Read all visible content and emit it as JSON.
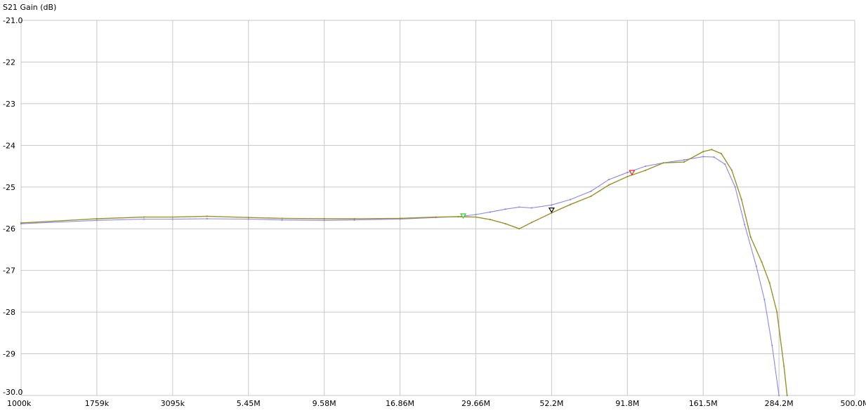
{
  "chart_data": {
    "type": "line",
    "ylabel": "S21 Gain (dB)",
    "x_scale": "log",
    "xlim": [
      1000000,
      500000000
    ],
    "ylim": [
      -30.0,
      -21.0
    ],
    "x_ticks": [
      {
        "value": 1000000,
        "label": "1000k"
      },
      {
        "value": 1759000,
        "label": "1759k"
      },
      {
        "value": 3095000,
        "label": "3095k"
      },
      {
        "value": 5450000,
        "label": "5.45M"
      },
      {
        "value": 9580000,
        "label": "9.58M"
      },
      {
        "value": 16860000,
        "label": "16.86M"
      },
      {
        "value": 29660000,
        "label": "29.66M"
      },
      {
        "value": 52200000,
        "label": "52.2M"
      },
      {
        "value": 91800000,
        "label": "91.8M"
      },
      {
        "value": 161500000,
        "label": "161.5M"
      },
      {
        "value": 284200000,
        "label": "284.2M"
      },
      {
        "value": 500000000,
        "label": "500.0M"
      }
    ],
    "y_ticks": [
      {
        "value": -21.0,
        "label": "-21.0"
      },
      {
        "value": -22,
        "label": "-22"
      },
      {
        "value": -23,
        "label": "-23"
      },
      {
        "value": -24,
        "label": "-24"
      },
      {
        "value": -25,
        "label": "-25"
      },
      {
        "value": -26,
        "label": "-26"
      },
      {
        "value": -27,
        "label": "-27"
      },
      {
        "value": -28,
        "label": "-28"
      },
      {
        "value": -29,
        "label": "-29"
      },
      {
        "value": -30.0,
        "label": "-30.0"
      }
    ],
    "grid": true,
    "series": [
      {
        "color": "#8888ee",
        "points": [
          [
            1000000,
            -25.88
          ],
          [
            1759000,
            -25.8
          ],
          [
            2500000,
            -25.77
          ],
          [
            3095000,
            -25.77
          ],
          [
            4000000,
            -25.76
          ],
          [
            5450000,
            -25.77
          ],
          [
            7000000,
            -25.79
          ],
          [
            9580000,
            -25.8
          ],
          [
            12000000,
            -25.79
          ],
          [
            16860000,
            -25.77
          ],
          [
            22000000,
            -25.73
          ],
          [
            26000000,
            -25.71
          ],
          [
            29660000,
            -25.66
          ],
          [
            33000000,
            -25.6
          ],
          [
            37000000,
            -25.53
          ],
          [
            41000000,
            -25.48
          ],
          [
            45000000,
            -25.5
          ],
          [
            52200000,
            -25.43
          ],
          [
            60000000,
            -25.3
          ],
          [
            70000000,
            -25.1
          ],
          [
            80000000,
            -24.82
          ],
          [
            91800000,
            -24.65
          ],
          [
            105000000,
            -24.5
          ],
          [
            120000000,
            -24.42
          ],
          [
            140000000,
            -24.35
          ],
          [
            161500000,
            -24.27
          ],
          [
            175000000,
            -24.28
          ],
          [
            190000000,
            -24.45
          ],
          [
            205000000,
            -25.0
          ],
          [
            220000000,
            -25.9
          ],
          [
            240000000,
            -26.9
          ],
          [
            255000000,
            -27.7
          ],
          [
            270000000,
            -28.8
          ],
          [
            284200000,
            -30.0
          ]
        ]
      },
      {
        "color": "#9b9128",
        "points": [
          [
            1000000,
            -25.86
          ],
          [
            1759000,
            -25.76
          ],
          [
            2500000,
            -25.72
          ],
          [
            3095000,
            -25.72
          ],
          [
            4000000,
            -25.7
          ],
          [
            5450000,
            -25.73
          ],
          [
            7000000,
            -25.75
          ],
          [
            9580000,
            -25.76
          ],
          [
            12000000,
            -25.76
          ],
          [
            16860000,
            -25.75
          ],
          [
            22000000,
            -25.72
          ],
          [
            26000000,
            -25.71
          ],
          [
            29660000,
            -25.72
          ],
          [
            33000000,
            -25.78
          ],
          [
            37000000,
            -25.88
          ],
          [
            41000000,
            -26.0
          ],
          [
            45000000,
            -25.85
          ],
          [
            52200000,
            -25.62
          ],
          [
            60000000,
            -25.42
          ],
          [
            70000000,
            -25.22
          ],
          [
            80000000,
            -24.95
          ],
          [
            91800000,
            -24.75
          ],
          [
            105000000,
            -24.6
          ],
          [
            120000000,
            -24.42
          ],
          [
            140000000,
            -24.4
          ],
          [
            161500000,
            -24.15
          ],
          [
            172000000,
            -24.1
          ],
          [
            185000000,
            -24.2
          ],
          [
            200000000,
            -24.6
          ],
          [
            215000000,
            -25.3
          ],
          [
            230000000,
            -26.2
          ],
          [
            250000000,
            -26.8
          ],
          [
            265000000,
            -27.3
          ],
          [
            280000000,
            -28.0
          ],
          [
            295000000,
            -29.3
          ],
          [
            302000000,
            -30.0
          ]
        ]
      }
    ],
    "markers": [
      {
        "x": 27000000,
        "y": -25.71,
        "color": "#33cc33"
      },
      {
        "x": 52200000,
        "y": -25.57,
        "color": "#000000"
      },
      {
        "x": 95000000,
        "y": -24.67,
        "color": "#ee2222"
      }
    ]
  }
}
